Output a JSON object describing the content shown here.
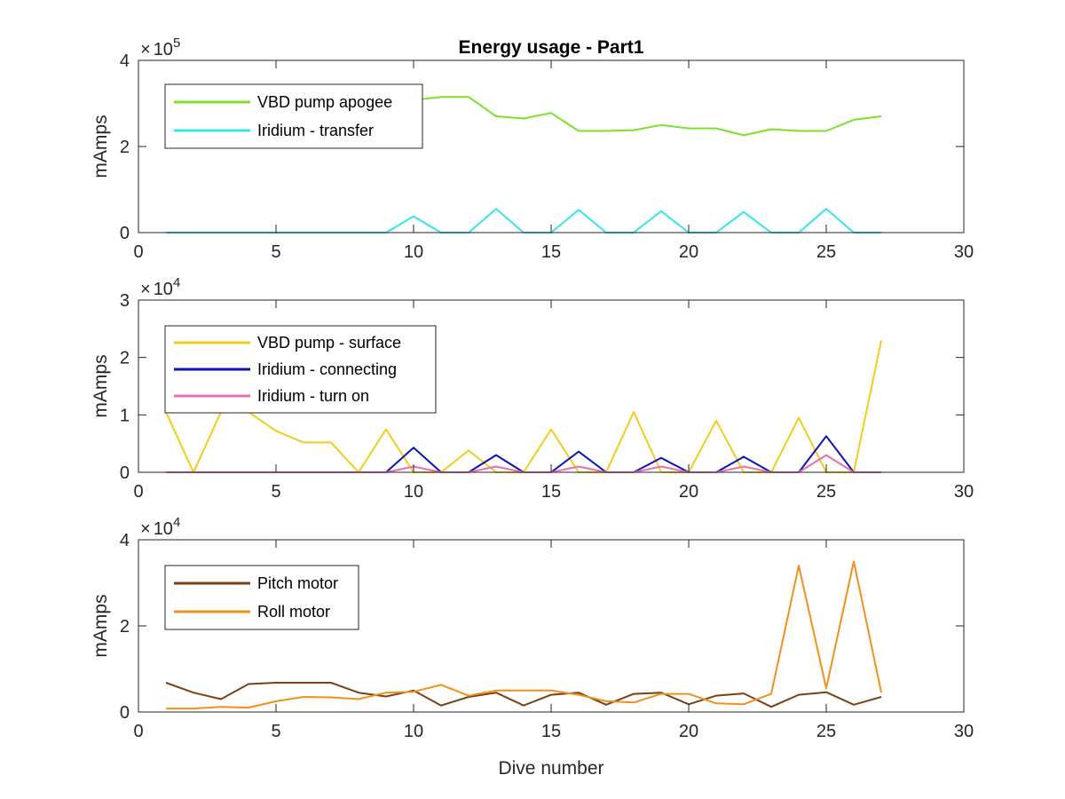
{
  "chart_data": [
    {
      "type": "line",
      "title": "Energy usage - Part1",
      "xlabel": "",
      "ylabel": "mAmps",
      "xlim": [
        0,
        30
      ],
      "ylim": [
        0,
        4
      ],
      "y_multiplier": "10",
      "y_exponent": "5",
      "xticks": [
        "0",
        "5",
        "10",
        "15",
        "20",
        "25",
        "30"
      ],
      "yticks": [
        "0",
        "2",
        "4"
      ],
      "legend_position": "top-left",
      "series": [
        {
          "name": "VBD pump apogee",
          "color": "#7de02c",
          "x": [
            9,
            10,
            11,
            12,
            13,
            14,
            15,
            16,
            17,
            18,
            19,
            20,
            21,
            22,
            23,
            24,
            25,
            26,
            27
          ],
          "y": [
            3.05,
            3.08,
            3.15,
            3.15,
            2.7,
            2.65,
            2.78,
            2.36,
            2.36,
            2.38,
            2.5,
            2.42,
            2.42,
            2.26,
            2.4,
            2.36,
            2.36,
            2.62,
            2.7
          ]
        },
        {
          "name": "Iridium - transfer",
          "color": "#33e6ee",
          "x": [
            1,
            2,
            3,
            4,
            5,
            6,
            7,
            8,
            9,
            10,
            11,
            12,
            13,
            14,
            15,
            16,
            17,
            18,
            19,
            20,
            21,
            22,
            23,
            24,
            25,
            26,
            27
          ],
          "y": [
            0,
            0,
            0,
            0,
            0,
            0,
            0,
            0,
            0,
            0.38,
            0,
            0,
            0.55,
            0,
            0,
            0.53,
            0,
            0,
            0.5,
            0,
            0,
            0.48,
            0,
            0,
            0.55,
            0,
            0
          ]
        }
      ]
    },
    {
      "type": "line",
      "title": "",
      "xlabel": "",
      "ylabel": "mAmps",
      "xlim": [
        0,
        30
      ],
      "ylim": [
        0,
        3
      ],
      "y_multiplier": "10",
      "y_exponent": "4",
      "xticks": [
        "0",
        "5",
        "10",
        "15",
        "20",
        "25",
        "30"
      ],
      "yticks": [
        "0",
        "1",
        "2",
        "3"
      ],
      "legend_position": "top-left",
      "series": [
        {
          "name": "VBD pump - surface",
          "color": "#f2cc1c",
          "x": [
            1,
            2,
            3,
            4,
            5,
            6,
            7,
            8,
            9,
            10,
            11,
            12,
            13,
            14,
            15,
            16,
            17,
            18,
            19,
            20,
            21,
            22,
            23,
            24,
            25,
            26,
            27
          ],
          "y": [
            1.05,
            0,
            1.05,
            1.05,
            0.72,
            0.52,
            0.52,
            0,
            0.75,
            0,
            0,
            0.38,
            0,
            0,
            0.75,
            0,
            0,
            1.05,
            0,
            0,
            0.9,
            0,
            0,
            0.95,
            0,
            0,
            2.3
          ]
        },
        {
          "name": "Iridium - connecting",
          "color": "#0a14b4",
          "x": [
            1,
            2,
            3,
            4,
            5,
            6,
            7,
            8,
            9,
            10,
            11,
            12,
            13,
            14,
            15,
            16,
            17,
            18,
            19,
            20,
            21,
            22,
            23,
            24,
            25,
            26,
            27
          ],
          "y": [
            0,
            0,
            0,
            0,
            0,
            0,
            0,
            0,
            0,
            0.43,
            0,
            0,
            0.3,
            0,
            0,
            0.36,
            0,
            0,
            0.25,
            0,
            0,
            0.27,
            0,
            0,
            0.63,
            0,
            0
          ]
        },
        {
          "name": "Iridium - turn on",
          "color": "#e86fb2",
          "x": [
            1,
            2,
            3,
            4,
            5,
            6,
            7,
            8,
            9,
            10,
            11,
            12,
            13,
            14,
            15,
            16,
            17,
            18,
            19,
            20,
            21,
            22,
            23,
            24,
            25,
            26,
            27
          ],
          "y": [
            0,
            0,
            0,
            0,
            0,
            0,
            0,
            0,
            0,
            0.1,
            0,
            0,
            0.1,
            0,
            0,
            0.1,
            0,
            0,
            0.1,
            0,
            0,
            0.1,
            0,
            0,
            0.3,
            0,
            0
          ]
        }
      ]
    },
    {
      "type": "line",
      "title": "",
      "xlabel": "Dive number",
      "ylabel": "mAmps",
      "xlim": [
        0,
        30
      ],
      "ylim": [
        0,
        4
      ],
      "y_multiplier": "10",
      "y_exponent": "4",
      "xticks": [
        "0",
        "5",
        "10",
        "15",
        "20",
        "25",
        "30"
      ],
      "yticks": [
        "0",
        "2",
        "4"
      ],
      "legend_position": "top-left",
      "series": [
        {
          "name": "Pitch motor",
          "color": "#7a4214",
          "x": [
            1,
            2,
            3,
            4,
            5,
            6,
            7,
            8,
            9,
            10,
            11,
            12,
            13,
            14,
            15,
            16,
            17,
            18,
            19,
            20,
            21,
            22,
            23,
            24,
            25,
            26,
            27
          ],
          "y": [
            0.68,
            0.45,
            0.3,
            0.65,
            0.68,
            0.68,
            0.68,
            0.45,
            0.36,
            0.5,
            0.15,
            0.35,
            0.45,
            0.15,
            0.4,
            0.45,
            0.17,
            0.42,
            0.45,
            0.18,
            0.38,
            0.43,
            0.12,
            0.4,
            0.46,
            0.17,
            0.35
          ]
        },
        {
          "name": "Roll motor",
          "color": "#f0901e",
          "x": [
            1,
            2,
            3,
            4,
            5,
            6,
            7,
            8,
            9,
            10,
            11,
            12,
            13,
            14,
            15,
            16,
            17,
            18,
            19,
            20,
            21,
            22,
            23,
            24,
            25,
            26,
            27
          ],
          "y": [
            0.08,
            0.08,
            0.12,
            0.1,
            0.25,
            0.35,
            0.34,
            0.3,
            0.45,
            0.47,
            0.63,
            0.38,
            0.5,
            0.5,
            0.5,
            0.4,
            0.25,
            0.22,
            0.42,
            0.42,
            0.2,
            0.18,
            0.42,
            3.4,
            0.55,
            3.5,
            0.45
          ]
        }
      ]
    }
  ]
}
